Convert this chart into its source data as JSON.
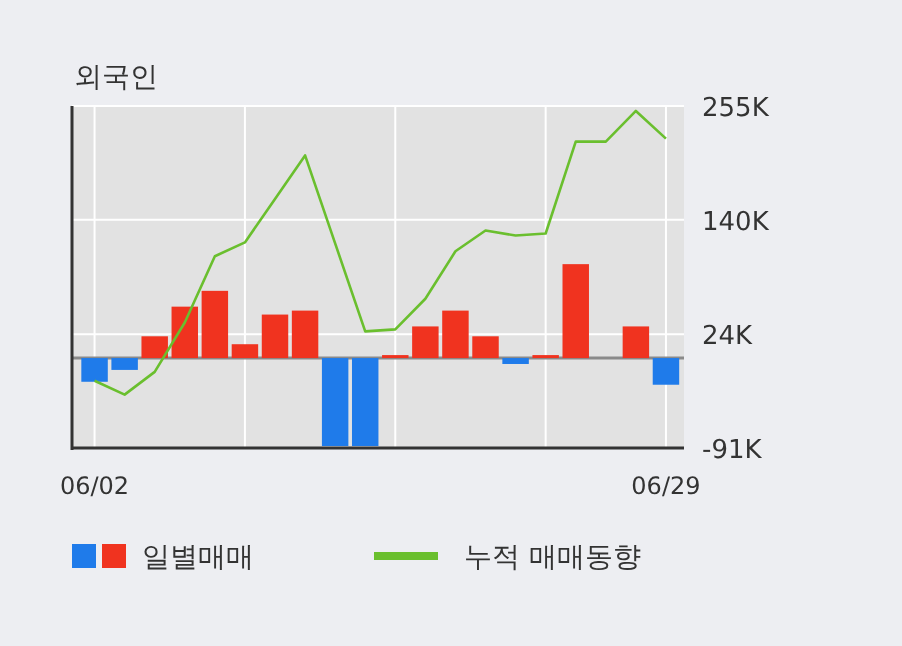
{
  "chart_data": {
    "type": "bar",
    "title": "외국인",
    "categories": [
      "06/02",
      null,
      null,
      null,
      null,
      null,
      null,
      null,
      null,
      null,
      null,
      null,
      null,
      null,
      null,
      null,
      null,
      null,
      null,
      "06/29"
    ],
    "series": [
      {
        "name": "일별매매",
        "colors": [
          "#1f7bea",
          "#1f7bea",
          "#f0331f",
          "#f0331f",
          "#f0331f",
          "#f0331f",
          "#f0331f",
          "#f0331f",
          "#1f7bea",
          "#1f7bea",
          "#f0331f",
          "#f0331f",
          "#f0331f",
          "#f0331f",
          "#1f7bea",
          "#f0331f",
          "#f0331f",
          "#f0331f",
          "#f0331f",
          "#1f7bea"
        ],
        "values": [
          -24,
          -12,
          22,
          52,
          68,
          14,
          44,
          48,
          -89,
          -89,
          3,
          32,
          48,
          22,
          -6,
          3,
          95,
          0,
          32,
          -27
        ]
      },
      {
        "name": "누적 매매동향",
        "type": "line",
        "color": "#6abf2e",
        "values": [
          -23,
          -37,
          -14,
          36,
          103,
          117,
          161,
          205,
          116,
          27,
          29,
          60,
          108,
          129,
          124,
          126,
          219,
          219,
          250,
          222
        ]
      }
    ],
    "ylim": [
      -91,
      255
    ],
    "yticks": [
      {
        "value": 255,
        "label": "255K"
      },
      {
        "value": 140,
        "label": "140K"
      },
      {
        "value": 24,
        "label": "24K"
      },
      {
        "value": -91,
        "label": "-91K"
      }
    ],
    "grid": true,
    "legend": "bottom"
  }
}
